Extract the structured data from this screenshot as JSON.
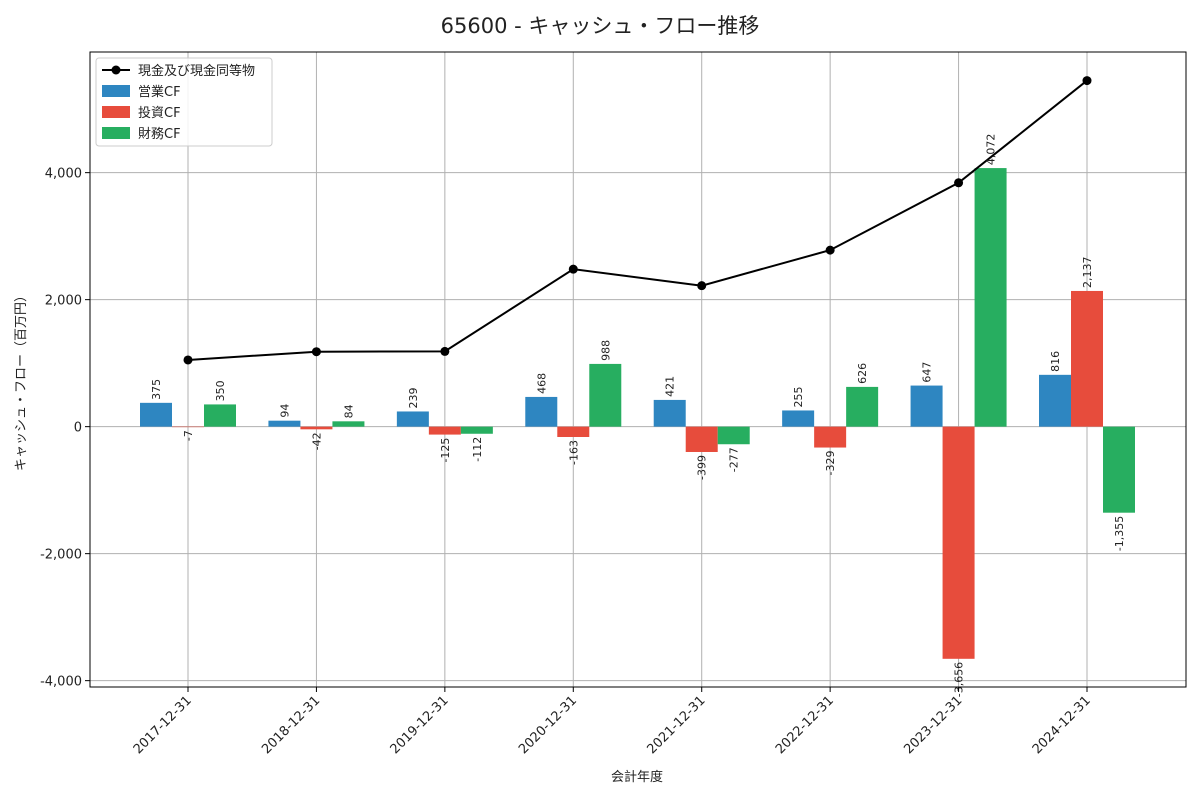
{
  "chart_data": {
    "type": "bar",
    "title": "65600 - キャッシュ・フロー推移",
    "xlabel": "会計年度",
    "ylabel": "キャッシュ・フロー（百万円）",
    "ylim": [
      -4100,
      5900
    ],
    "yticks": [
      -4000,
      -2000,
      0,
      2000,
      4000
    ],
    "ytick_labels": [
      "-4,000",
      "-2,000",
      "0",
      "2,000",
      "4,000"
    ],
    "grid": true,
    "legend_position": "top-left",
    "categories": [
      "2017-12-31",
      "2018-12-31",
      "2019-12-31",
      "2020-12-31",
      "2021-12-31",
      "2022-12-31",
      "2023-12-31",
      "2024-12-31"
    ],
    "series": [
      {
        "name": "営業CF",
        "kind": "bar",
        "color": "#2e86c1",
        "values": [
          375,
          94,
          239,
          468,
          421,
          255,
          647,
          816
        ],
        "labels": [
          "375",
          "94",
          "239",
          "468",
          "421",
          "255",
          "647",
          "816"
        ]
      },
      {
        "name": "投資CF",
        "kind": "bar",
        "color": "#e74c3c",
        "values": [
          -7,
          -42,
          -125,
          -163,
          -399,
          -329,
          -3656,
          2137
        ],
        "labels": [
          "-7",
          "-42",
          "-125",
          "-163",
          "-399",
          "-329",
          "-3,656",
          "2,137"
        ]
      },
      {
        "name": "財務CF",
        "kind": "bar",
        "color": "#27ae60",
        "values": [
          350,
          84,
          -112,
          988,
          -277,
          626,
          4072,
          -1355
        ],
        "labels": [
          "350",
          "84",
          "-112",
          "988",
          "-277",
          "626",
          "4,072",
          "-1,355"
        ]
      },
      {
        "name": "現金及び現金同等物",
        "kind": "line",
        "color": "#000000",
        "values": [
          1050,
          1180,
          1185,
          2480,
          2220,
          2780,
          3840,
          5450
        ]
      }
    ]
  }
}
